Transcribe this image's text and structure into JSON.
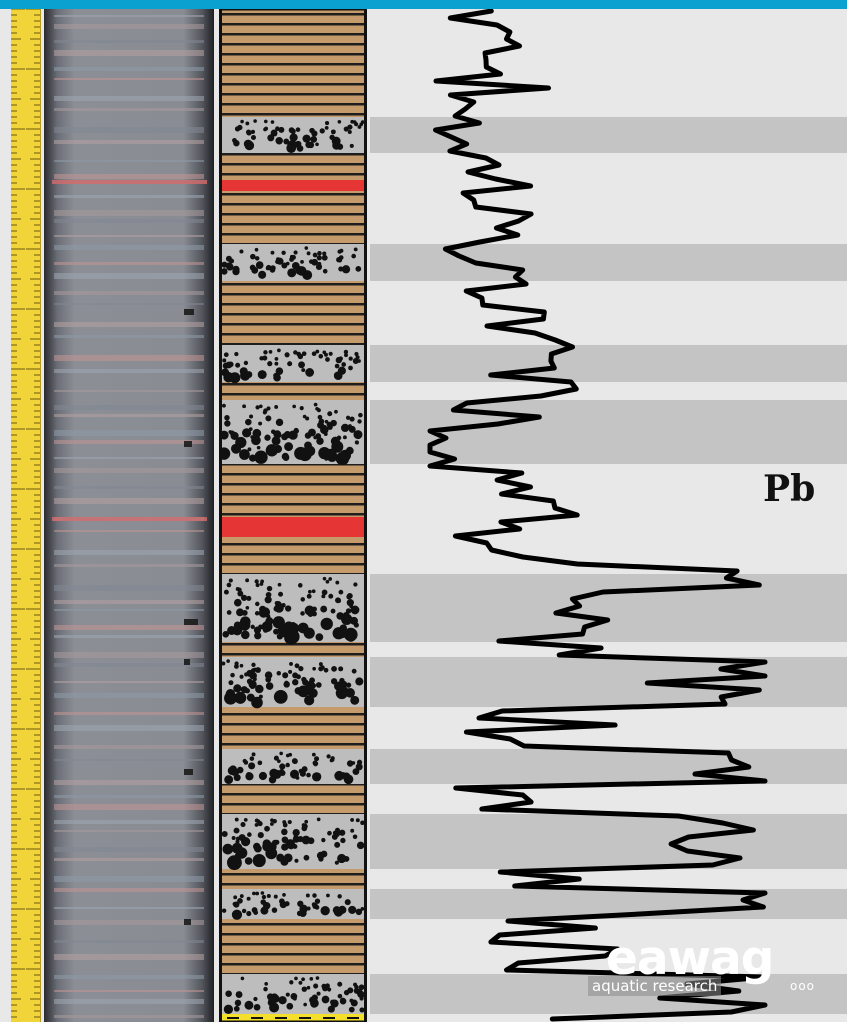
{
  "element_label": "Pb",
  "logo": {
    "name": "eawag",
    "tagline": "aquatic research",
    "decoration": "ooo"
  },
  "colors": {
    "top_bar": "#0aa1d1",
    "ruler": "#f1d43a",
    "laminated_layer": "#c59b6b",
    "event_layer": "#e53535",
    "turbidite_band": "#bdbdbd",
    "background": "#e8e8e8",
    "curve": "#000000"
  },
  "lithology_key": {
    "laminated": "laminated-sediment",
    "red": "red-marker-layer",
    "clast": "coarse-clast-layer",
    "base": "yellow-base-layer"
  },
  "pb_curve_shape": "jagged-line"
}
